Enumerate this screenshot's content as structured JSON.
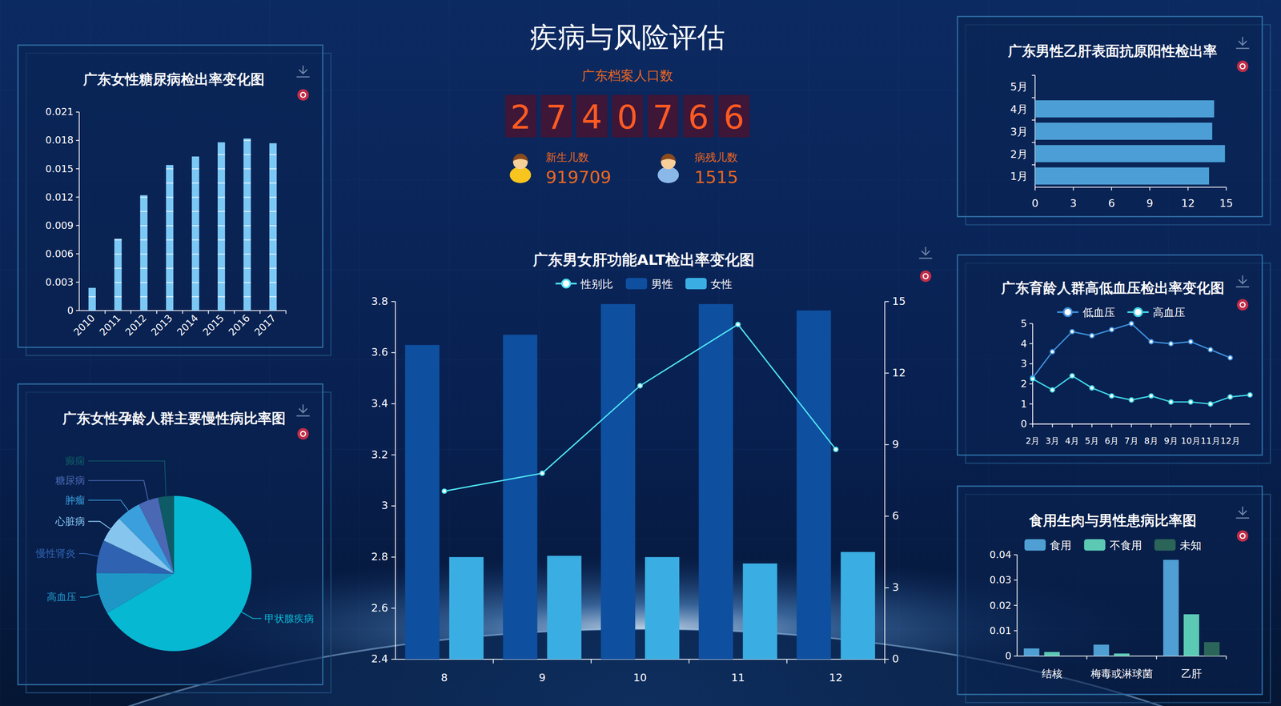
{
  "page": {
    "title": "疾病与风险评估",
    "population": {
      "label": "广东档案人口数",
      "value": 2740766
    },
    "newborn": {
      "label": "新生儿数",
      "value": 919709
    },
    "disabled": {
      "label": "病残儿数",
      "value": 1515
    }
  },
  "chart_data": [
    {
      "type": "bar",
      "title": "广东女性糖尿病检出率变化图",
      "categories": [
        "2010",
        "2011",
        "2012",
        "2013",
        "2014",
        "2015",
        "2016",
        "2017"
      ],
      "values": [
        0.0024,
        0.0076,
        0.0122,
        0.0154,
        0.0163,
        0.0178,
        0.0182,
        0.0177
      ],
      "color": "#7cc8f5",
      "ylim": [
        0,
        0.021
      ],
      "yticks": [
        0,
        0.003,
        0.006,
        0.009,
        0.012,
        0.015,
        0.018,
        0.021
      ],
      "grid": false
    },
    {
      "type": "pie",
      "title": "广东女性孕龄人群主要慢性病比率图",
      "categories": [
        "甲状腺疾病",
        "高血压",
        "慢性肾炎",
        "心脏病",
        "肿瘤",
        "糖尿病",
        "癫痫"
      ],
      "values": [
        66.5,
        8.6,
        6.9,
        5.5,
        5.0,
        4.2,
        3.3
      ],
      "colors": [
        "#07b8d2",
        "#1f97c6",
        "#2f62b0",
        "#86c6ee",
        "#3a9fdc",
        "#4a68b4",
        "#0e5a66"
      ]
    },
    {
      "type": "bar",
      "title": "广东男女肝功能ALT检出率变化图",
      "categories": [
        "8",
        "9",
        "10",
        "11",
        "12"
      ],
      "series": [
        {
          "name": "性别比",
          "type": "line",
          "axis": "y2",
          "color": "#4fe3f2",
          "marker": "circle",
          "values": [
            7.05,
            7.8,
            11.47,
            14.04,
            8.8
          ]
        },
        {
          "name": "男性",
          "type": "bar",
          "color": "#0e4f9f",
          "values": [
            3.63,
            3.67,
            3.79,
            3.79,
            3.765
          ]
        },
        {
          "name": "女性",
          "type": "bar",
          "color": "#3aaee3",
          "values": [
            2.8,
            2.805,
            2.8,
            2.775,
            2.82
          ]
        }
      ],
      "ylim": [
        2.4,
        3.8
      ],
      "yticks": [
        2.4,
        2.6,
        2.8,
        3,
        3.2,
        3.4,
        3.6,
        3.8
      ],
      "y2lim": [
        0,
        15
      ],
      "y2ticks": [
        0,
        3,
        6,
        9,
        12,
        15
      ],
      "legend": "top",
      "grid": false
    },
    {
      "type": "bar",
      "orientation": "horizontal",
      "title": "广东男性乙肝表面抗原阳性检出率",
      "categories": [
        "1月",
        "2月",
        "3月",
        "4月",
        "5月"
      ],
      "values": [
        13.65,
        14.9,
        13.9,
        14.05,
        null
      ],
      "color": "#4c9fd6",
      "xlim": [
        0,
        15
      ],
      "xticks": [
        0,
        3,
        6,
        9,
        12,
        15
      ],
      "grid": false
    },
    {
      "type": "line",
      "title": "广东育龄人群高低血压检出率变化图",
      "categories": [
        "2月",
        "3月",
        "4月",
        "5月",
        "6月",
        "7月",
        "8月",
        "9月",
        "10月",
        "11月",
        "12月",
        null
      ],
      "series": [
        {
          "name": "低血压",
          "color": "#3d8fdc",
          "marker": "circle",
          "values": [
            2.3,
            3.6,
            4.6,
            4.4,
            4.7,
            5.0,
            4.1,
            4.0,
            4.1,
            3.7,
            3.3,
            null
          ]
        },
        {
          "name": "高血压",
          "color": "#3fd6e8",
          "marker": "circle",
          "values": [
            2.25,
            1.7,
            2.4,
            1.8,
            1.4,
            1.2,
            1.4,
            1.1,
            1.1,
            1.0,
            1.35,
            1.45
          ]
        }
      ],
      "ylim": [
        0,
        5
      ],
      "yticks": [
        0,
        1,
        2,
        3,
        4,
        5
      ],
      "legend": "top",
      "grid": false
    },
    {
      "type": "bar",
      "title": "食用生肉与男性患病比率图",
      "categories": [
        "结核",
        "梅毒或淋球菌",
        "乙肝"
      ],
      "series": [
        {
          "name": "食用",
          "color": "#4f9fd4",
          "values": [
            0.003,
            0.0045,
            0.038
          ]
        },
        {
          "name": "不食用",
          "color": "#5cc9b5",
          "values": [
            0.0016,
            0.001,
            0.0165
          ]
        },
        {
          "name": "未知",
          "color": "#2b6458",
          "values": [
            0,
            0,
            0.0055
          ]
        }
      ],
      "ylim": [
        0,
        0.04
      ],
      "yticks": [
        0,
        0.01,
        0.02,
        0.03,
        0.04
      ],
      "legend": "top",
      "grid": false
    }
  ]
}
